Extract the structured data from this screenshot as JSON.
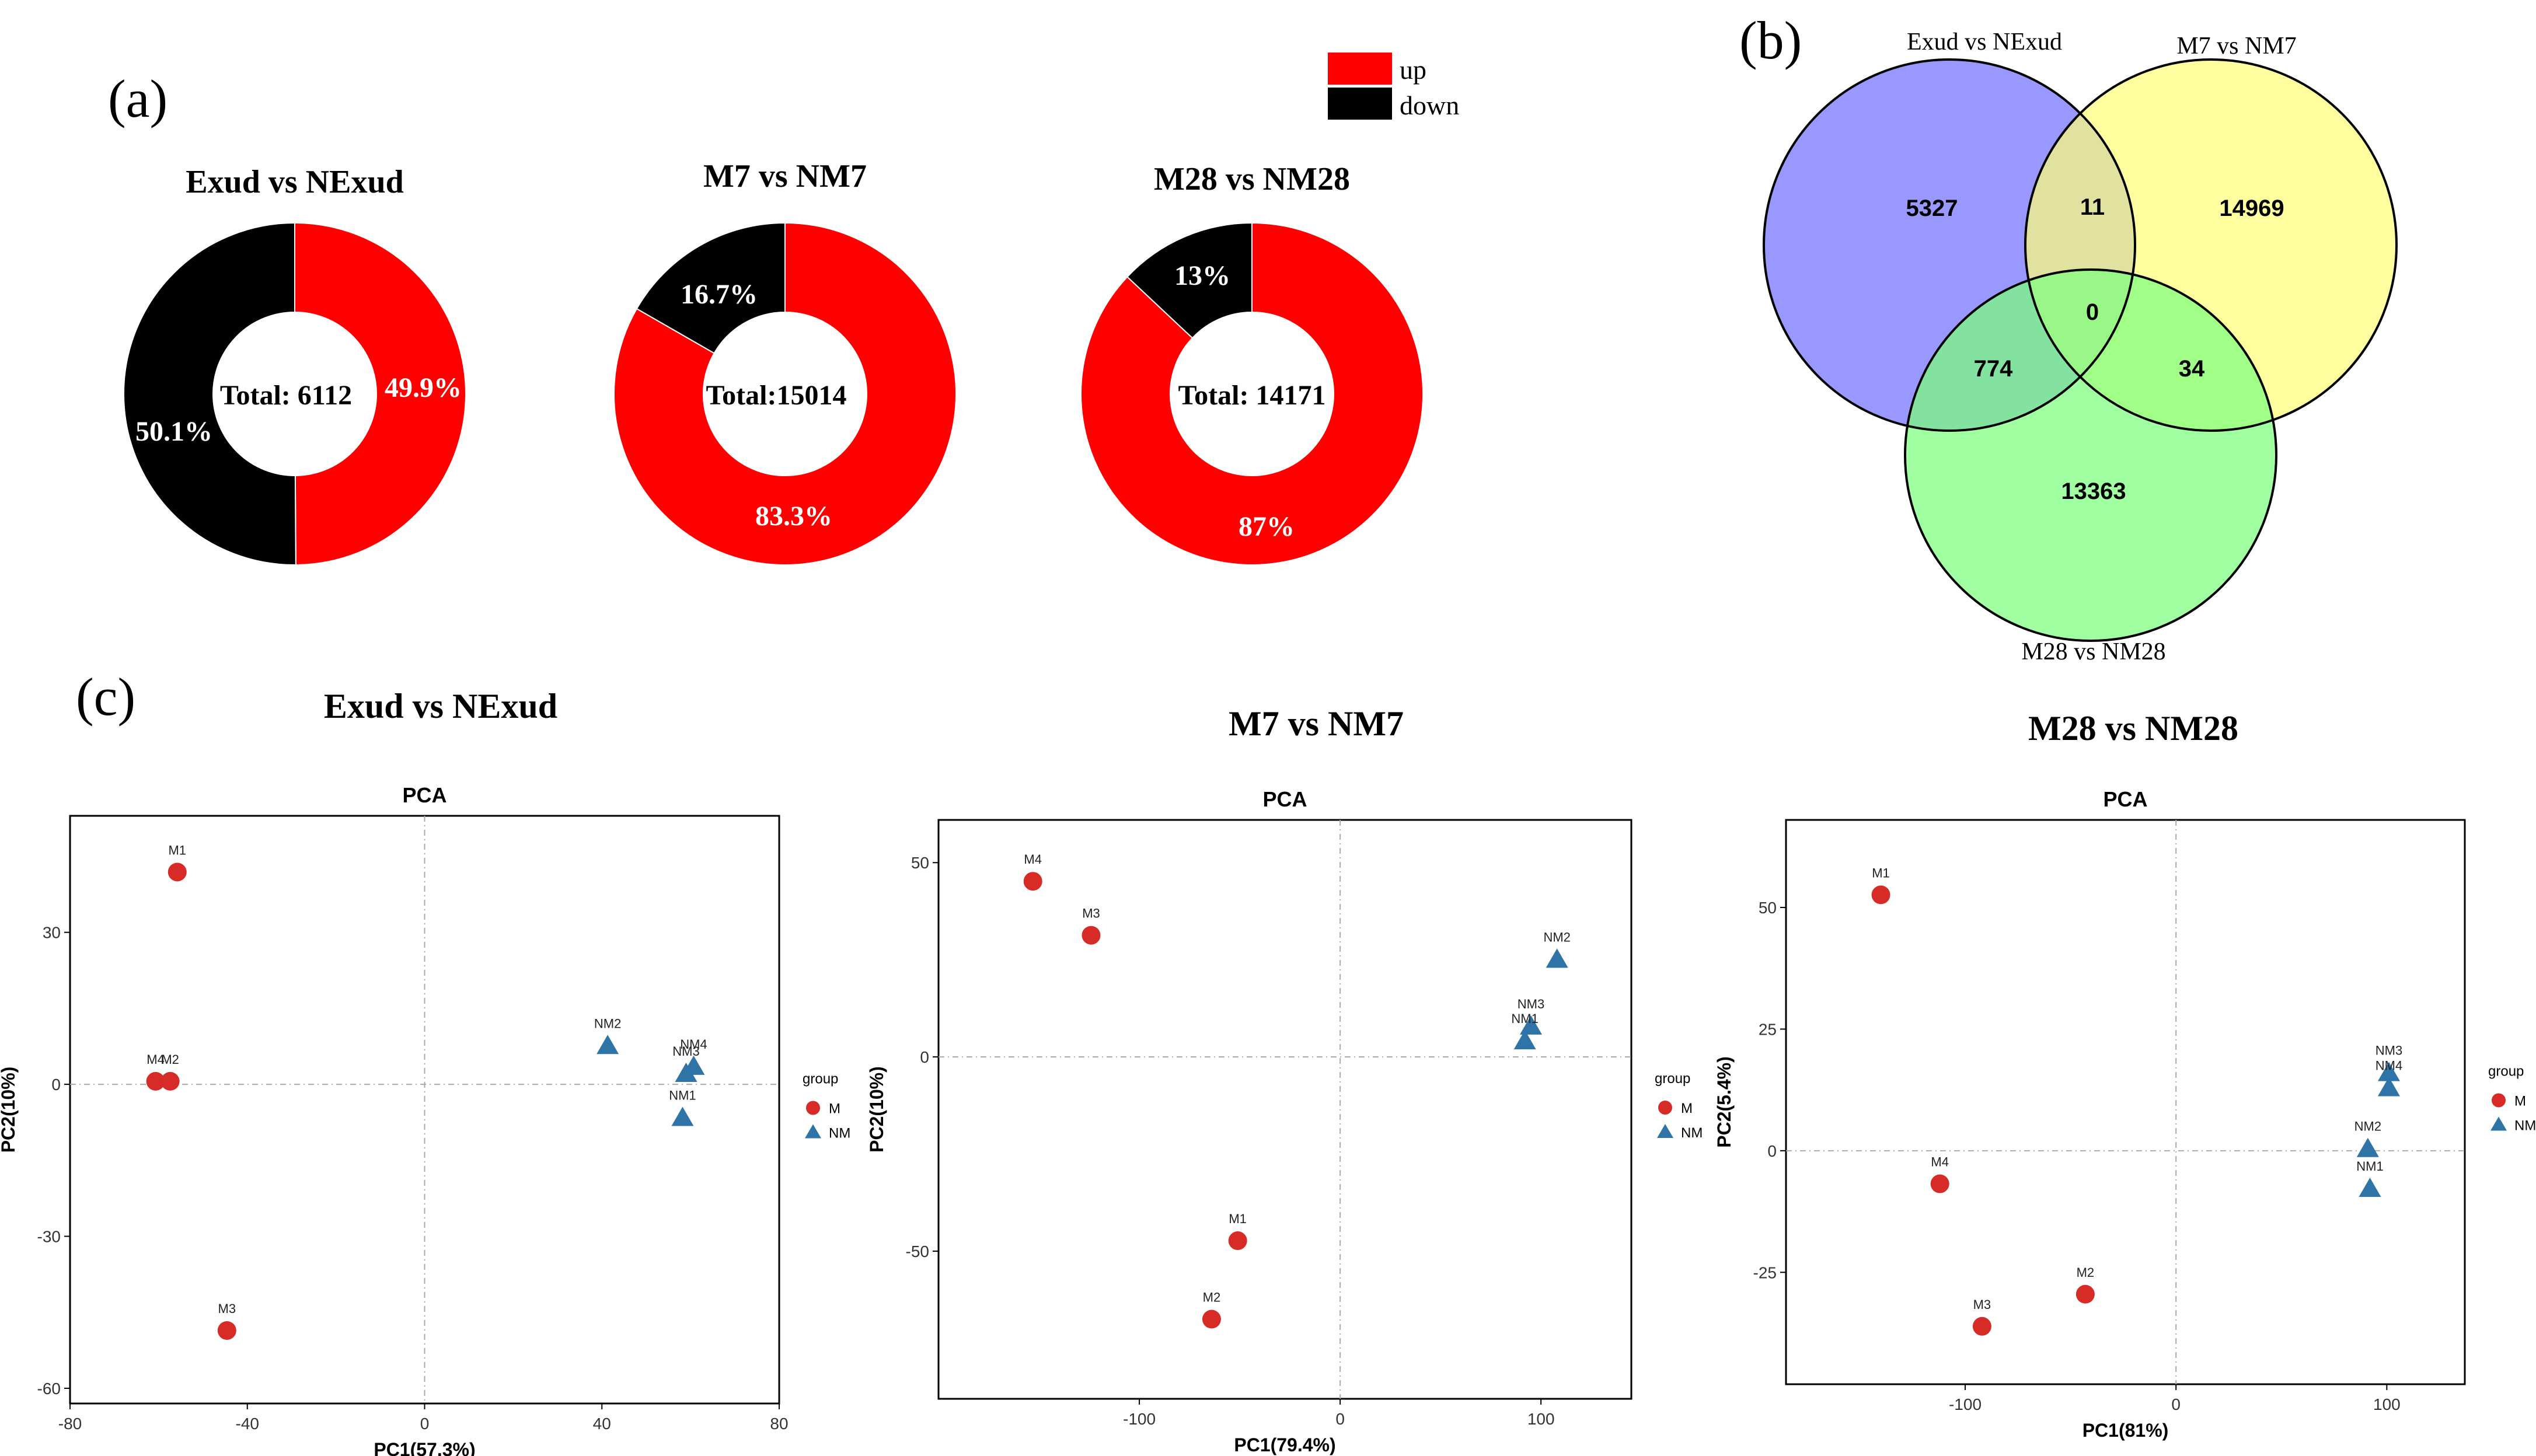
{
  "panels": {
    "a": "(a)",
    "b": "(b)",
    "c": "(c)"
  },
  "colors": {
    "up": "#ff0000",
    "down": "#000000",
    "venn_a": "#7b7bff",
    "venn_b": "#ffff7b",
    "venn_c": "#7bff7b",
    "group_M": "#d62b26",
    "group_NM": "#2e74a6"
  },
  "legend": {
    "up_label": "up",
    "down_label": "down"
  },
  "chart_data": [
    {
      "type": "pie",
      "title": "Exud vs NExud",
      "center_label": "Total: 6112",
      "slices": [
        {
          "name": "up",
          "value": 49.9,
          "label": "49.9%"
        },
        {
          "name": "down",
          "value": 50.1,
          "label": "50.1%"
        }
      ]
    },
    {
      "type": "pie",
      "title": "M7 vs NM7",
      "center_label": "Total:15014",
      "slices": [
        {
          "name": "up",
          "value": 83.3,
          "label": "83.3%"
        },
        {
          "name": "down",
          "value": 16.7,
          "label": "16.7%"
        }
      ]
    },
    {
      "type": "pie",
      "title": "M28 vs NM28",
      "center_label": "Total: 14171",
      "slices": [
        {
          "name": "up",
          "value": 87,
          "label": "87%"
        },
        {
          "name": "down",
          "value": 13,
          "label": "13%"
        }
      ]
    },
    {
      "type": "venn",
      "sets": [
        "Exud vs NExud",
        "M7 vs NM7",
        "M28 vs NM28"
      ],
      "regions": {
        "a_only": "5327",
        "b_only": "14969",
        "c_only": "13363",
        "ab": "11",
        "ac": "774",
        "bc": "34",
        "abc": "0"
      }
    },
    {
      "type": "scatter",
      "heading": "Exud vs NExud",
      "title": "PCA",
      "xlabel": "PC1(57.3%)",
      "ylabel": "PC2(10%)",
      "xlim": [
        -80,
        80
      ],
      "ylim": [
        -63,
        53
      ],
      "xticks": [
        -80,
        -40,
        0,
        40,
        80
      ],
      "yticks": [
        30,
        0,
        -30,
        -60
      ],
      "legend_title": "group",
      "groups": [
        "M",
        "NM"
      ],
      "points": [
        {
          "label": "M1",
          "group": "M",
          "x": -55.8,
          "y": 41.9
        },
        {
          "label": "M4",
          "group": "M",
          "x": -60.7,
          "y": 0.6
        },
        {
          "label": "M2",
          "group": "M",
          "x": -57.4,
          "y": 0.6
        },
        {
          "label": "M3",
          "group": "M",
          "x": -44.6,
          "y": -48.6
        },
        {
          "label": "NM2",
          "group": "NM",
          "x": 41.3,
          "y": 7.7
        },
        {
          "label": "NM4",
          "group": "NM",
          "x": 60.7,
          "y": 3.6
        },
        {
          "label": "NM3",
          "group": "NM",
          "x": 59.0,
          "y": 2.2
        },
        {
          "label": "NM1",
          "group": "NM",
          "x": 58.2,
          "y": -6.5
        }
      ]
    },
    {
      "type": "scatter",
      "heading": "M7 vs NM7",
      "title": "PCA",
      "xlabel": "PC1(79.4%)",
      "ylabel": "PC2(10%)",
      "xlim": [
        -200,
        145
      ],
      "ylim": [
        -88,
        61
      ],
      "xticks": [
        -100,
        0,
        100
      ],
      "yticks": [
        50,
        0,
        -50
      ],
      "legend_title": "group",
      "groups": [
        "M",
        "NM"
      ],
      "points": [
        {
          "label": "M4",
          "group": "M",
          "x": -153,
          "y": 45.2
        },
        {
          "label": "M3",
          "group": "M",
          "x": -124,
          "y": 31.3
        },
        {
          "label": "M1",
          "group": "M",
          "x": -51,
          "y": -47.3
        },
        {
          "label": "M2",
          "group": "M",
          "x": -64,
          "y": -67.5
        },
        {
          "label": "NM2",
          "group": "NM",
          "x": 108,
          "y": 25.2
        },
        {
          "label": "NM3",
          "group": "NM",
          "x": 95,
          "y": 8.0
        },
        {
          "label": "NM1",
          "group": "NM",
          "x": 92,
          "y": 4.2
        }
      ]
    },
    {
      "type": "scatter",
      "heading": "M28 vs NM28",
      "title": "PCA",
      "xlabel": "PC1(81%)",
      "ylabel": "PC2(5.4%)",
      "xlim": [
        -185,
        137
      ],
      "ylim": [
        -48,
        68
      ],
      "xticks": [
        -100,
        0,
        100
      ],
      "yticks": [
        50,
        25,
        0,
        -25
      ],
      "legend_title": "group",
      "groups": [
        "M",
        "NM"
      ],
      "points": [
        {
          "label": "M1",
          "group": "M",
          "x": -140,
          "y": 52.6
        },
        {
          "label": "M4",
          "group": "M",
          "x": -112,
          "y": -6.8
        },
        {
          "label": "M3",
          "group": "M",
          "x": -92,
          "y": -36.1
        },
        {
          "label": "M2",
          "group": "M",
          "x": -43,
          "y": -29.5
        },
        {
          "label": "NM3",
          "group": "NM",
          "x": 101,
          "y": 16.1
        },
        {
          "label": "NM4",
          "group": "NM",
          "x": 101,
          "y": 13.0
        },
        {
          "label": "NM2",
          "group": "NM",
          "x": 91,
          "y": 0.5
        },
        {
          "label": "NM1",
          "group": "NM",
          "x": 92,
          "y": -7.7
        }
      ]
    }
  ]
}
